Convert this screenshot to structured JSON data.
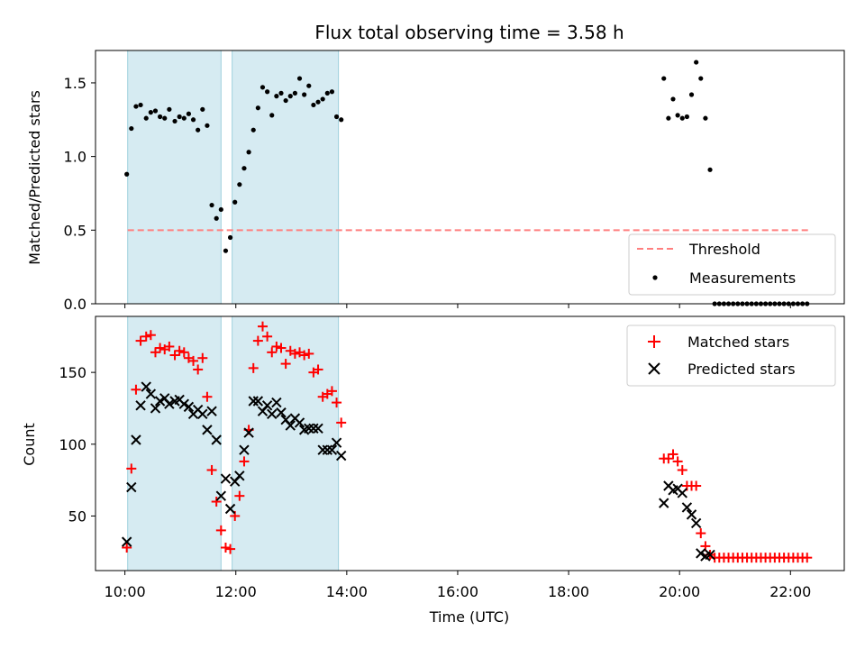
{
  "chart_data": [
    {
      "panel": "top",
      "type": "scatter",
      "title": "Flux total observing time = 3.58 h",
      "xlabel": "",
      "ylabel": "Matched/Predicted stars",
      "xlim_hours": [
        9.47,
        22.97
      ],
      "ylim": [
        0,
        1.72
      ],
      "yticks": [
        0.0,
        0.5,
        1.0,
        1.5
      ],
      "ytick_labels": [
        "0.0",
        "0.5",
        "1.0",
        "1.5"
      ],
      "shaded_spans": [
        [
          "10:03",
          "11:44"
        ],
        [
          "11:56",
          "13:51"
        ]
      ],
      "threshold": {
        "name": "Threshold",
        "value": 0.5,
        "x_range": [
          "10:03",
          "22:20"
        ],
        "color": "#ff7f7f"
      },
      "series": [
        {
          "name": "Measurements",
          "color": "#000000",
          "marker": "dot",
          "points": [
            [
              "10:02",
              0.88
            ],
            [
              "10:07",
              1.19
            ],
            [
              "10:12",
              1.34
            ],
            [
              "10:17",
              1.35
            ],
            [
              "10:23",
              1.26
            ],
            [
              "10:28",
              1.3
            ],
            [
              "10:33",
              1.31
            ],
            [
              "10:38",
              1.27
            ],
            [
              "10:43",
              1.26
            ],
            [
              "10:48",
              1.32
            ],
            [
              "10:54",
              1.24
            ],
            [
              "10:59",
              1.27
            ],
            [
              "11:04",
              1.26
            ],
            [
              "11:09",
              1.29
            ],
            [
              "11:14",
              1.25
            ],
            [
              "11:19",
              1.18
            ],
            [
              "11:24",
              1.32
            ],
            [
              "11:29",
              1.21
            ],
            [
              "11:34",
              0.67
            ],
            [
              "11:39",
              0.58
            ],
            [
              "11:44",
              0.64
            ],
            [
              "11:49",
              0.36
            ],
            [
              "11:54",
              0.45
            ],
            [
              "11:59",
              0.69
            ],
            [
              "12:04",
              0.81
            ],
            [
              "12:09",
              0.92
            ],
            [
              "12:14",
              1.03
            ],
            [
              "12:19",
              1.18
            ],
            [
              "12:24",
              1.33
            ],
            [
              "12:29",
              1.47
            ],
            [
              "12:34",
              1.44
            ],
            [
              "12:39",
              1.28
            ],
            [
              "12:44",
              1.41
            ],
            [
              "12:49",
              1.43
            ],
            [
              "12:54",
              1.38
            ],
            [
              "12:59",
              1.41
            ],
            [
              "13:04",
              1.43
            ],
            [
              "13:09",
              1.53
            ],
            [
              "13:14",
              1.42
            ],
            [
              "13:19",
              1.48
            ],
            [
              "13:24",
              1.35
            ],
            [
              "13:29",
              1.37
            ],
            [
              "13:34",
              1.39
            ],
            [
              "13:39",
              1.43
            ],
            [
              "13:44",
              1.44
            ],
            [
              "13:49",
              1.27
            ],
            [
              "13:54",
              1.25
            ],
            [
              "19:43",
              1.53
            ],
            [
              "19:48",
              1.26
            ],
            [
              "19:53",
              1.39
            ],
            [
              "19:58",
              1.28
            ],
            [
              "20:03",
              1.26
            ],
            [
              "20:08",
              1.27
            ],
            [
              "20:13",
              1.42
            ],
            [
              "20:18",
              1.64
            ],
            [
              "20:23",
              1.53
            ],
            [
              "20:28",
              1.26
            ],
            [
              "20:33",
              0.91
            ],
            [
              "20:38",
              0.0
            ],
            [
              "20:43",
              0.0
            ],
            [
              "20:48",
              0.0
            ],
            [
              "20:53",
              0.0
            ],
            [
              "20:58",
              0.0
            ],
            [
              "21:03",
              0.0
            ],
            [
              "21:08",
              0.0
            ],
            [
              "21:13",
              0.0
            ],
            [
              "21:18",
              0.0
            ],
            [
              "21:23",
              0.0
            ],
            [
              "21:28",
              0.0
            ],
            [
              "21:33",
              0.0
            ],
            [
              "21:38",
              0.0
            ],
            [
              "21:43",
              0.0
            ],
            [
              "21:48",
              0.0
            ],
            [
              "21:53",
              0.0
            ],
            [
              "21:58",
              0.0
            ],
            [
              "22:03",
              0.0
            ],
            [
              "22:08",
              0.0
            ],
            [
              "22:13",
              0.0
            ],
            [
              "22:18",
              0.0
            ]
          ]
        }
      ],
      "legend": {
        "placement": "lower-right",
        "entries": [
          "Threshold",
          "Measurements"
        ]
      }
    },
    {
      "panel": "bottom",
      "type": "scatter",
      "title": "",
      "xlabel": "Time (UTC)",
      "ylabel": "Count",
      "xlim_hours": [
        9.47,
        22.97
      ],
      "ylim": [
        12,
        189
      ],
      "xticks": [
        "10:00",
        "12:00",
        "14:00",
        "16:00",
        "18:00",
        "20:00",
        "22:00"
      ],
      "yticks": [
        50,
        100,
        150
      ],
      "ytick_labels": [
        "50",
        "100",
        "150"
      ],
      "shaded_spans": [
        [
          "10:03",
          "11:44"
        ],
        [
          "11:56",
          "13:51"
        ]
      ],
      "series": [
        {
          "name": "Matched stars",
          "color": "#ff0000",
          "marker": "plus",
          "points": [
            [
              "10:02",
              28
            ],
            [
              "10:07",
              83
            ],
            [
              "10:12",
              138
            ],
            [
              "10:17",
              172
            ],
            [
              "10:23",
              175
            ],
            [
              "10:28",
              176
            ],
            [
              "10:33",
              164
            ],
            [
              "10:38",
              167
            ],
            [
              "10:43",
              166
            ],
            [
              "10:48",
              168
            ],
            [
              "10:54",
              162
            ],
            [
              "10:59",
              165
            ],
            [
              "11:04",
              164
            ],
            [
              "11:09",
              160
            ],
            [
              "11:14",
              158
            ],
            [
              "11:19",
              152
            ],
            [
              "11:24",
              160
            ],
            [
              "11:29",
              133
            ],
            [
              "11:34",
              82
            ],
            [
              "11:39",
              60
            ],
            [
              "11:44",
              40
            ],
            [
              "11:49",
              28
            ],
            [
              "11:54",
              27
            ],
            [
              "11:59",
              50
            ],
            [
              "12:04",
              64
            ],
            [
              "12:09",
              88
            ],
            [
              "12:14",
              110
            ],
            [
              "12:19",
              153
            ],
            [
              "12:24",
              172
            ],
            [
              "12:29",
              182
            ],
            [
              "12:34",
              175
            ],
            [
              "12:39",
              164
            ],
            [
              "12:44",
              168
            ],
            [
              "12:49",
              167
            ],
            [
              "12:54",
              156
            ],
            [
              "12:59",
              165
            ],
            [
              "13:04",
              163
            ],
            [
              "13:09",
              164
            ],
            [
              "13:14",
              162
            ],
            [
              "13:19",
              163
            ],
            [
              "13:24",
              150
            ],
            [
              "13:29",
              152
            ],
            [
              "13:34",
              133
            ],
            [
              "13:39",
              135
            ],
            [
              "13:44",
              137
            ],
            [
              "13:49",
              129
            ],
            [
              "13:54",
              115
            ],
            [
              "19:43",
              90
            ],
            [
              "19:48",
              90
            ],
            [
              "19:53",
              93
            ],
            [
              "19:58",
              88
            ],
            [
              "20:03",
              82
            ],
            [
              "20:08",
              71
            ],
            [
              "20:13",
              71
            ],
            [
              "20:18",
              71
            ],
            [
              "20:23",
              38
            ],
            [
              "20:28",
              29
            ],
            [
              "20:33",
              23
            ],
            [
              "20:38",
              21
            ],
            [
              "20:43",
              21
            ],
            [
              "20:48",
              21
            ],
            [
              "20:53",
              21
            ],
            [
              "20:58",
              21
            ],
            [
              "21:03",
              21
            ],
            [
              "21:08",
              21
            ],
            [
              "21:13",
              21
            ],
            [
              "21:18",
              21
            ],
            [
              "21:23",
              21
            ],
            [
              "21:28",
              21
            ],
            [
              "21:33",
              21
            ],
            [
              "21:38",
              21
            ],
            [
              "21:43",
              21
            ],
            [
              "21:48",
              21
            ],
            [
              "21:53",
              21
            ],
            [
              "21:58",
              21
            ],
            [
              "22:03",
              21
            ],
            [
              "22:08",
              21
            ],
            [
              "22:13",
              21
            ],
            [
              "22:18",
              21
            ]
          ]
        },
        {
          "name": "Predicted stars",
          "color": "#000000",
          "marker": "x",
          "points": [
            [
              "10:02",
              32
            ],
            [
              "10:07",
              70
            ],
            [
              "10:12",
              103
            ],
            [
              "10:17",
              127
            ],
            [
              "10:23",
              140
            ],
            [
              "10:28",
              135
            ],
            [
              "10:33",
              125
            ],
            [
              "10:38",
              130
            ],
            [
              "10:43",
              132
            ],
            [
              "10:48",
              128
            ],
            [
              "10:54",
              130
            ],
            [
              "10:59",
              131
            ],
            [
              "11:04",
              128
            ],
            [
              "11:09",
              126
            ],
            [
              "11:14",
              121
            ],
            [
              "11:19",
              124
            ],
            [
              "11:24",
              121
            ],
            [
              "11:29",
              110
            ],
            [
              "11:34",
              123
            ],
            [
              "11:39",
              103
            ],
            [
              "11:44",
              64
            ],
            [
              "11:49",
              76
            ],
            [
              "11:54",
              55
            ],
            [
              "11:59",
              74
            ],
            [
              "12:04",
              78
            ],
            [
              "12:09",
              96
            ],
            [
              "12:14",
              108
            ],
            [
              "12:19",
              130
            ],
            [
              "12:24",
              130
            ],
            [
              "12:29",
              123
            ],
            [
              "12:34",
              127
            ],
            [
              "12:39",
              121
            ],
            [
              "12:44",
              129
            ],
            [
              "12:49",
              122
            ],
            [
              "12:54",
              117
            ],
            [
              "12:59",
              113
            ],
            [
              "13:04",
              118
            ],
            [
              "13:09",
              115
            ],
            [
              "13:14",
              110
            ],
            [
              "13:19",
              111
            ],
            [
              "13:24",
              111
            ],
            [
              "13:29",
              111
            ],
            [
              "13:34",
              96
            ],
            [
              "13:39",
              96
            ],
            [
              "13:44",
              96
            ],
            [
              "13:49",
              101
            ],
            [
              "13:54",
              92
            ],
            [
              "19:43",
              59
            ],
            [
              "19:48",
              71
            ],
            [
              "19:53",
              68
            ],
            [
              "19:58",
              69
            ],
            [
              "20:03",
              66
            ],
            [
              "20:08",
              56
            ],
            [
              "20:13",
              51
            ],
            [
              "20:18",
              45
            ],
            [
              "20:23",
              24
            ],
            [
              "20:28",
              22
            ],
            [
              "20:33",
              23
            ]
          ]
        }
      ],
      "legend": {
        "placement": "upper-right",
        "entries": [
          "Matched stars",
          "Predicted stars"
        ]
      }
    }
  ]
}
